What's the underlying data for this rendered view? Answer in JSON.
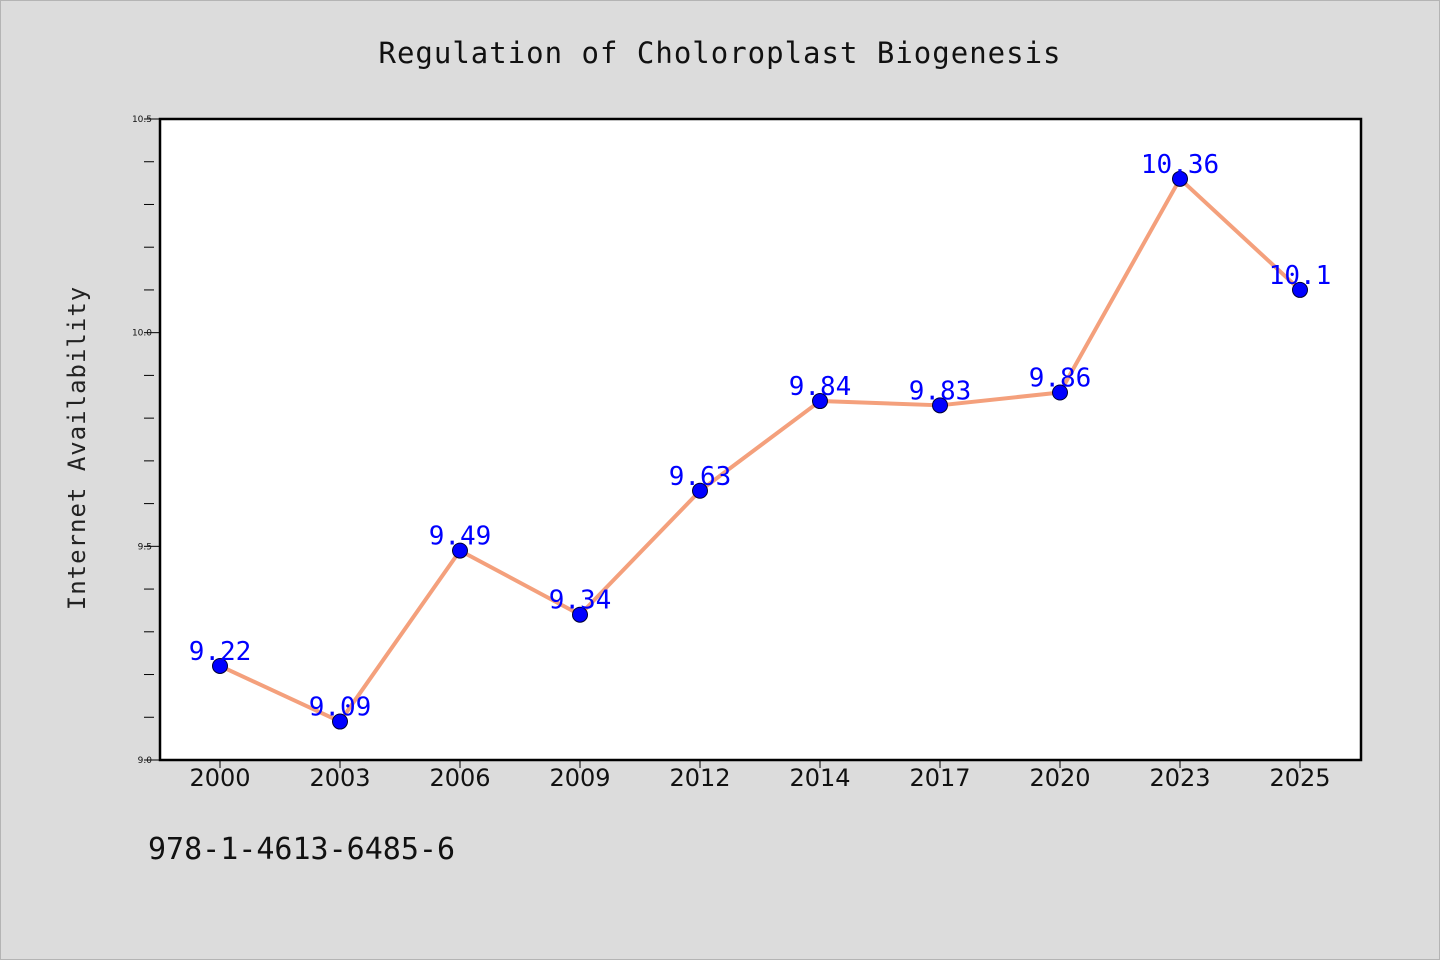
{
  "chart_data": {
    "type": "line",
    "title": "Regulation of Choloroplast Biogenesis",
    "xlabel": "",
    "ylabel": "Internet Availability",
    "categories": [
      "2000",
      "2003",
      "2006",
      "2009",
      "2012",
      "2014",
      "2017",
      "2020",
      "2023",
      "2025"
    ],
    "series": [
      {
        "values": [
          9.22,
          9.09,
          9.49,
          9.34,
          9.63,
          9.84,
          9.83,
          9.86,
          10.36,
          10.1
        ]
      }
    ],
    "data_labels": [
      "9.22",
      "9.09",
      "9.49",
      "9.34",
      "9.63",
      "9.84",
      "9.83",
      "9.86",
      "10.36",
      "10.1"
    ],
    "ylim": [
      9.0,
      10.5
    ],
    "y_ticks": [
      "9.0",
      "9.5",
      "10.0",
      "10.5"
    ],
    "grid": false,
    "colors": {
      "line": "#f4a07c",
      "marker": "#0000ff",
      "marker_edge": "#000033",
      "data_label": "#0000ff",
      "background": "#dcdcdc",
      "plot_background": "#ffffff"
    }
  },
  "footer": {
    "isbn": "978-1-4613-6485-6"
  }
}
